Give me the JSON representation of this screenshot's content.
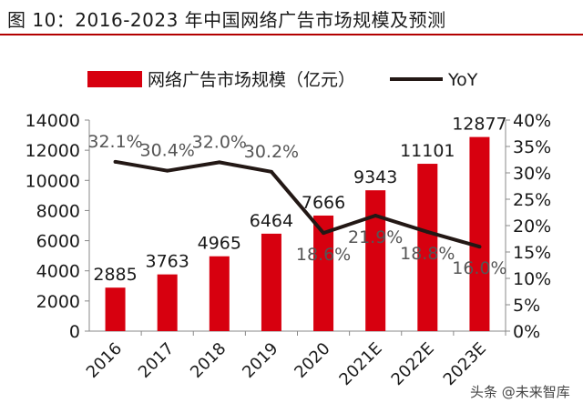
{
  "header": {
    "title": "图 10：2016-2023 年中国网络广告市场规模及预测"
  },
  "watermark": "头条 @未来智库",
  "colors": {
    "bar": "#d7000f",
    "line": "#231815",
    "text": "#1a1a1a",
    "title_rule": "#b30000"
  },
  "chart_data": {
    "type": "bar",
    "categories": [
      "2016",
      "2017",
      "2018",
      "2019",
      "2020",
      "2021E",
      "2022E",
      "2023E"
    ],
    "series": [
      {
        "name": "网络广告市场规模（亿元）",
        "type": "bar",
        "axis": "left",
        "values": [
          2885,
          3763,
          4965,
          6464,
          7666,
          9343,
          11101,
          12877
        ],
        "labels": [
          "2885",
          "3763",
          "4965",
          "6464",
          "7666",
          "9343",
          "11101",
          "12877"
        ]
      },
      {
        "name": "YoY",
        "type": "line",
        "axis": "right",
        "values": [
          32.1,
          30.4,
          32.0,
          30.2,
          18.6,
          21.9,
          18.8,
          16.0
        ],
        "labels": [
          "32.1%",
          "30.4%",
          "32.0%",
          "30.2%",
          "18.6%",
          "21.9%",
          "18.8%",
          "16.0%"
        ]
      }
    ],
    "y_left": {
      "ylim": [
        0,
        14000
      ],
      "ticks": [
        "0",
        "2000",
        "4000",
        "6000",
        "8000",
        "10000",
        "12000",
        "14000"
      ]
    },
    "y_right": {
      "ylim": [
        0,
        40
      ],
      "ticks": [
        "0%",
        "5%",
        "10%",
        "15%",
        "20%",
        "25%",
        "30%",
        "35%",
        "40%"
      ]
    },
    "legend": "top",
    "grid": false
  }
}
